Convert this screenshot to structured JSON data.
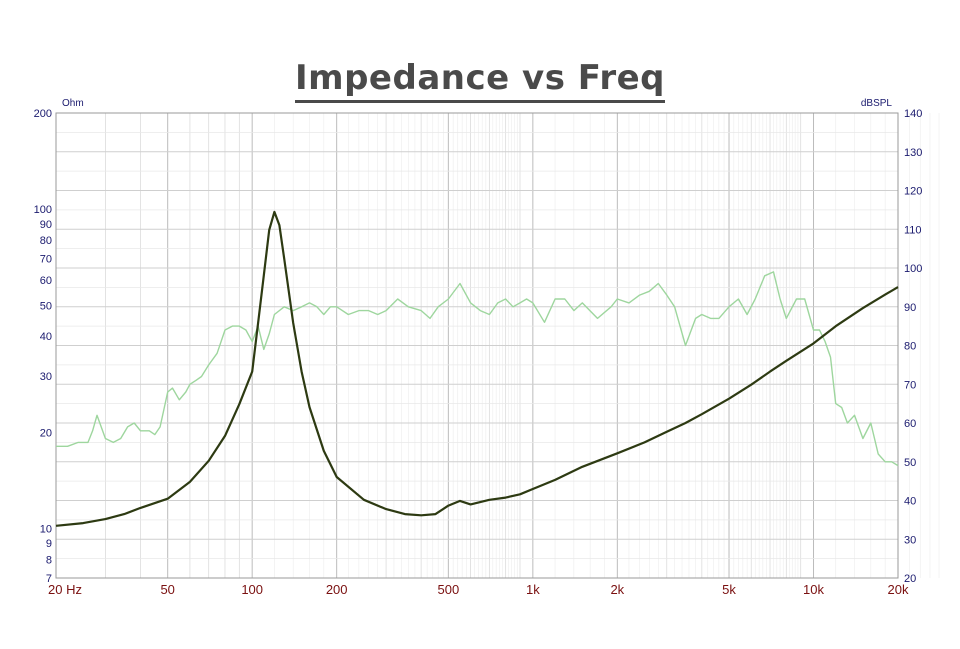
{
  "chart_data": {
    "type": "line",
    "title": "Impedance vs Freq",
    "x_scale": "log",
    "xlim": [
      20,
      20000
    ],
    "x_ticks": [
      20,
      50,
      100,
      200,
      500,
      1000,
      2000,
      5000,
      10000,
      20000
    ],
    "x_tick_labels": [
      "20 Hz",
      "50",
      "100",
      "200",
      "500",
      "1k",
      "2k",
      "5k",
      "10k",
      "20k"
    ],
    "y_left": {
      "label": "Ohm",
      "scale": "log",
      "lim": [
        7,
        200
      ],
      "ticks": [
        7,
        8,
        9,
        10,
        20,
        30,
        40,
        50,
        60,
        70,
        80,
        90,
        100,
        200
      ],
      "tick_labels": [
        "7",
        "8",
        "9",
        "10",
        "20",
        "30",
        "40",
        "50",
        "60",
        "70",
        "80",
        "90",
        "100",
        "200"
      ]
    },
    "y_right": {
      "label": "dBSPL",
      "scale": "linear",
      "lim": [
        20,
        140
      ],
      "ticks": [
        20,
        30,
        40,
        50,
        60,
        70,
        80,
        90,
        100,
        110,
        120,
        130,
        140
      ],
      "tick_labels": [
        "20",
        "30",
        "40",
        "50",
        "60",
        "70",
        "80",
        "90",
        "100",
        "110",
        "120",
        "130",
        "140"
      ]
    },
    "grid": true,
    "series": [
      {
        "axis": "left",
        "color": "#2d3a12",
        "x": [
          20,
          25,
          30,
          35,
          40,
          50,
          60,
          70,
          80,
          90,
          100,
          105,
          110,
          115,
          120,
          125,
          130,
          140,
          150,
          160,
          180,
          200,
          250,
          300,
          350,
          400,
          450,
          500,
          550,
          600,
          700,
          800,
          900,
          1000,
          1200,
          1500,
          2000,
          2500,
          3000,
          3500,
          4000,
          5000,
          6000,
          7000,
          8000,
          10000,
          12000,
          15000,
          18000,
          20000
        ],
        "y": [
          10.2,
          10.4,
          10.7,
          11.1,
          11.6,
          12.4,
          14.0,
          16.3,
          19.5,
          24.5,
          31.0,
          44.0,
          62.0,
          86.0,
          98.0,
          89.0,
          70.0,
          44.0,
          31.0,
          24.0,
          17.5,
          14.5,
          12.3,
          11.5,
          11.1,
          11.0,
          11.1,
          11.8,
          12.2,
          11.9,
          12.3,
          12.5,
          12.8,
          13.3,
          14.2,
          15.6,
          17.2,
          18.6,
          20.1,
          21.4,
          22.8,
          25.5,
          28.2,
          31.0,
          33.5,
          38.0,
          43.0,
          49.0,
          54.0,
          57.0
        ]
      },
      {
        "axis": "right",
        "color": "#9ed69e",
        "x": [
          20,
          22,
          24,
          26,
          27,
          28,
          30,
          32,
          34,
          36,
          38,
          40,
          43,
          45,
          47,
          50,
          52,
          55,
          58,
          60,
          63,
          66,
          70,
          75,
          80,
          85,
          90,
          95,
          100,
          105,
          110,
          115,
          120,
          130,
          140,
          150,
          160,
          170,
          180,
          190,
          200,
          220,
          240,
          260,
          280,
          300,
          330,
          360,
          400,
          430,
          460,
          500,
          550,
          600,
          650,
          700,
          750,
          800,
          850,
          900,
          950,
          1000,
          1100,
          1200,
          1300,
          1400,
          1500,
          1700,
          1900,
          2000,
          2200,
          2400,
          2600,
          2800,
          3000,
          3200,
          3500,
          3800,
          4000,
          4300,
          4600,
          5000,
          5400,
          5800,
          6200,
          6700,
          7200,
          7600,
          8000,
          8700,
          9300,
          10000,
          10500,
          11000,
          11500,
          12000,
          12600,
          13200,
          14000,
          15000,
          16000,
          17000,
          18000,
          19000,
          20000
        ],
        "y": [
          54,
          54,
          55,
          55,
          58,
          62,
          56,
          55,
          56,
          59,
          60,
          58,
          58,
          57,
          59,
          68,
          69,
          66,
          68,
          70,
          71,
          72,
          75,
          78,
          84,
          85,
          85,
          84,
          81,
          85,
          79,
          83,
          88,
          90,
          89,
          90,
          91,
          90,
          88,
          90,
          90,
          88,
          89,
          89,
          88,
          89,
          92,
          90,
          89,
          87,
          90,
          92,
          96,
          91,
          89,
          88,
          91,
          92,
          90,
          91,
          92,
          91,
          86,
          92,
          92,
          89,
          91,
          87,
          90,
          92,
          91,
          93,
          94,
          96,
          93,
          90,
          80,
          87,
          88,
          87,
          87,
          90,
          92,
          88,
          92,
          98,
          99,
          92,
          87,
          92,
          92,
          84,
          84,
          81,
          77,
          65,
          64,
          60,
          62,
          56,
          60,
          52,
          50,
          50,
          49
        ]
      }
    ]
  }
}
